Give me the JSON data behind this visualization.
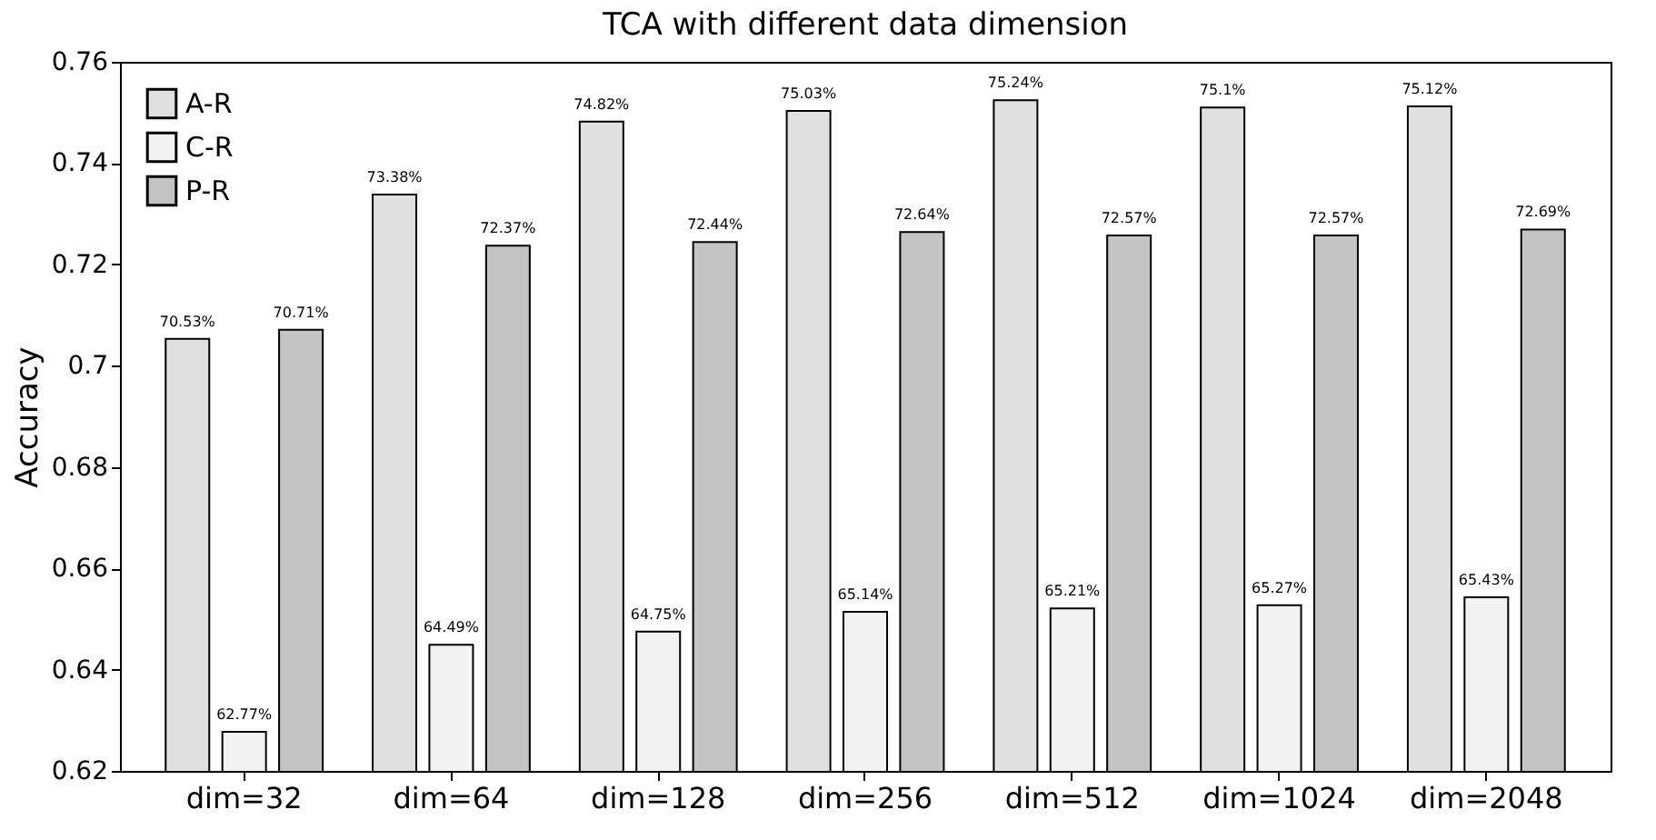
{
  "chart_data": {
    "type": "bar",
    "title": "TCA with different data dimension",
    "ylabel": "Accuracy",
    "categories": [
      "dim=32",
      "dim=64",
      "dim=128",
      "dim=256",
      "dim=512",
      "dim=1024",
      "dim=2048"
    ],
    "series": [
      {
        "name": "A-R",
        "color": "#e0e0e0",
        "values": [
          0.7053,
          0.7338,
          0.7482,
          0.7503,
          0.7524,
          0.751,
          0.7512
        ],
        "value_labels": [
          "70.53%",
          "73.38%",
          "74.82%",
          "75.03%",
          "75.24%",
          "75.1%",
          "75.12%"
        ]
      },
      {
        "name": "C-R",
        "color": "#f2f2f2",
        "values": [
          0.6277,
          0.6449,
          0.6475,
          0.6514,
          0.6521,
          0.6527,
          0.6543
        ],
        "value_labels": [
          "62.77%",
          "64.49%",
          "64.75%",
          "65.14%",
          "65.21%",
          "65.27%",
          "65.43%"
        ]
      },
      {
        "name": "P-R",
        "color": "#c4c4c4",
        "values": [
          0.7071,
          0.7237,
          0.7244,
          0.7264,
          0.7257,
          0.7257,
          0.7269
        ],
        "value_labels": [
          "70.71%",
          "72.37%",
          "72.44%",
          "72.64%",
          "72.57%",
          "72.57%",
          "72.69%"
        ]
      }
    ],
    "ylim": [
      0.62,
      0.76
    ],
    "yticks": [
      0.62,
      0.64,
      0.66,
      0.68,
      0.7,
      0.72,
      0.74,
      0.76
    ],
    "grid": false,
    "legend": "top left"
  }
}
